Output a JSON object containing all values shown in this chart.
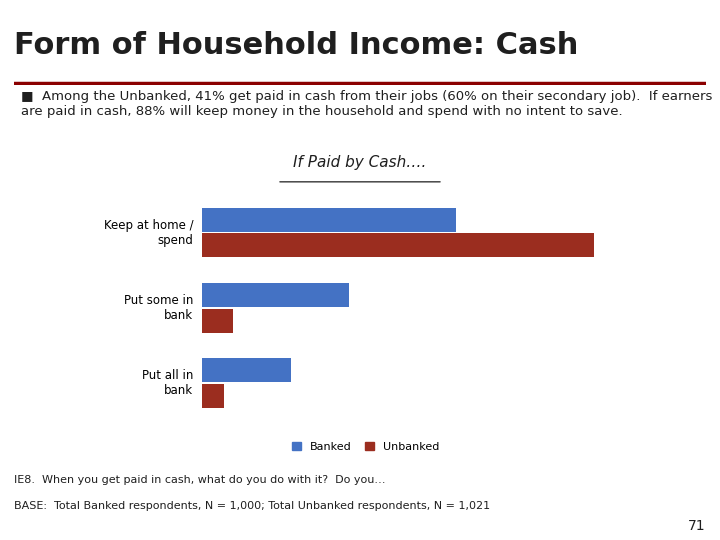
{
  "title": "Form of Household Income: Cash",
  "bullet_text": "Among the Unbanked, 41% get paid in cash from their jobs (60% on their secondary job).  If earners\nare paid in cash, 88% will keep money in the household and spend with no intent to save.",
  "chart_title": "If Paid by Cash….",
  "categories": [
    "Keep at home /\nspend",
    "Put some in\nbank",
    "Put all in\nbank"
  ],
  "banked_values": [
    57,
    33,
    20
  ],
  "unbanked_values": [
    88,
    7,
    5
  ],
  "banked_color": "#4472C4",
  "unbanked_color": "#9B2D1F",
  "xlim": [
    0,
    100
  ],
  "legend_labels": [
    "Banked",
    "Unbanked"
  ],
  "footer_line1": "IE8.  When you get paid in cash, what do you do with it?  Do you…",
  "footer_line2": "BASE:  Total Banked respondents, N = 1,000; Total Unbanked respondents, N = 1,021",
  "page_number": "71",
  "background_color": "#FFFFFF",
  "title_color": "#1F1F1F",
  "bar_height": 0.32,
  "title_fontsize": 22,
  "bullet_fontsize": 9.5,
  "chart_title_fontsize": 11,
  "footer_fontsize": 8,
  "separator_color": "#8B0000"
}
